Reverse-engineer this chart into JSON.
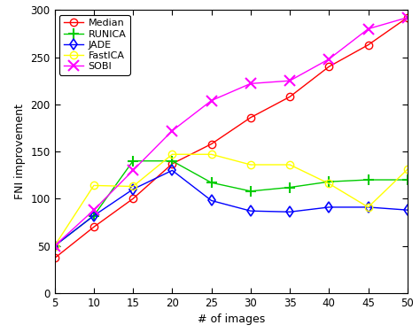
{
  "x": [
    5,
    10,
    15,
    20,
    25,
    30,
    35,
    40,
    45,
    50
  ],
  "Median": [
    37,
    70,
    100,
    137,
    158,
    186,
    208,
    240,
    263,
    292
  ],
  "RUNICA": [
    50,
    82,
    140,
    140,
    117,
    108,
    112,
    118,
    120,
    120
  ],
  "JADE": [
    50,
    82,
    110,
    130,
    98,
    87,
    86,
    91,
    91,
    88
  ],
  "FastICA": [
    50,
    114,
    113,
    147,
    147,
    136,
    136,
    116,
    91,
    131
  ],
  "SOBI": [
    50,
    88,
    130,
    172,
    204,
    222,
    225,
    248,
    280,
    292
  ],
  "colors": {
    "Median": "#ff0000",
    "RUNICA": "#00cc00",
    "JADE": "#0000ff",
    "FastICA": "#ffff00",
    "SOBI": "#ff00ff"
  },
  "markers": {
    "Median": "o",
    "RUNICA": "+",
    "JADE": "d",
    "FastICA": "o",
    "SOBI": "x"
  },
  "series_order": [
    "Median",
    "RUNICA",
    "JADE",
    "FastICA",
    "SOBI"
  ],
  "xlabel": "# of images",
  "ylabel": "FNI improvement",
  "ylim": [
    0,
    300
  ],
  "xlim": [
    5,
    50
  ],
  "xticks": [
    5,
    10,
    15,
    20,
    25,
    30,
    35,
    40,
    45,
    50
  ],
  "yticks": [
    0,
    50,
    100,
    150,
    200,
    250,
    300
  ]
}
